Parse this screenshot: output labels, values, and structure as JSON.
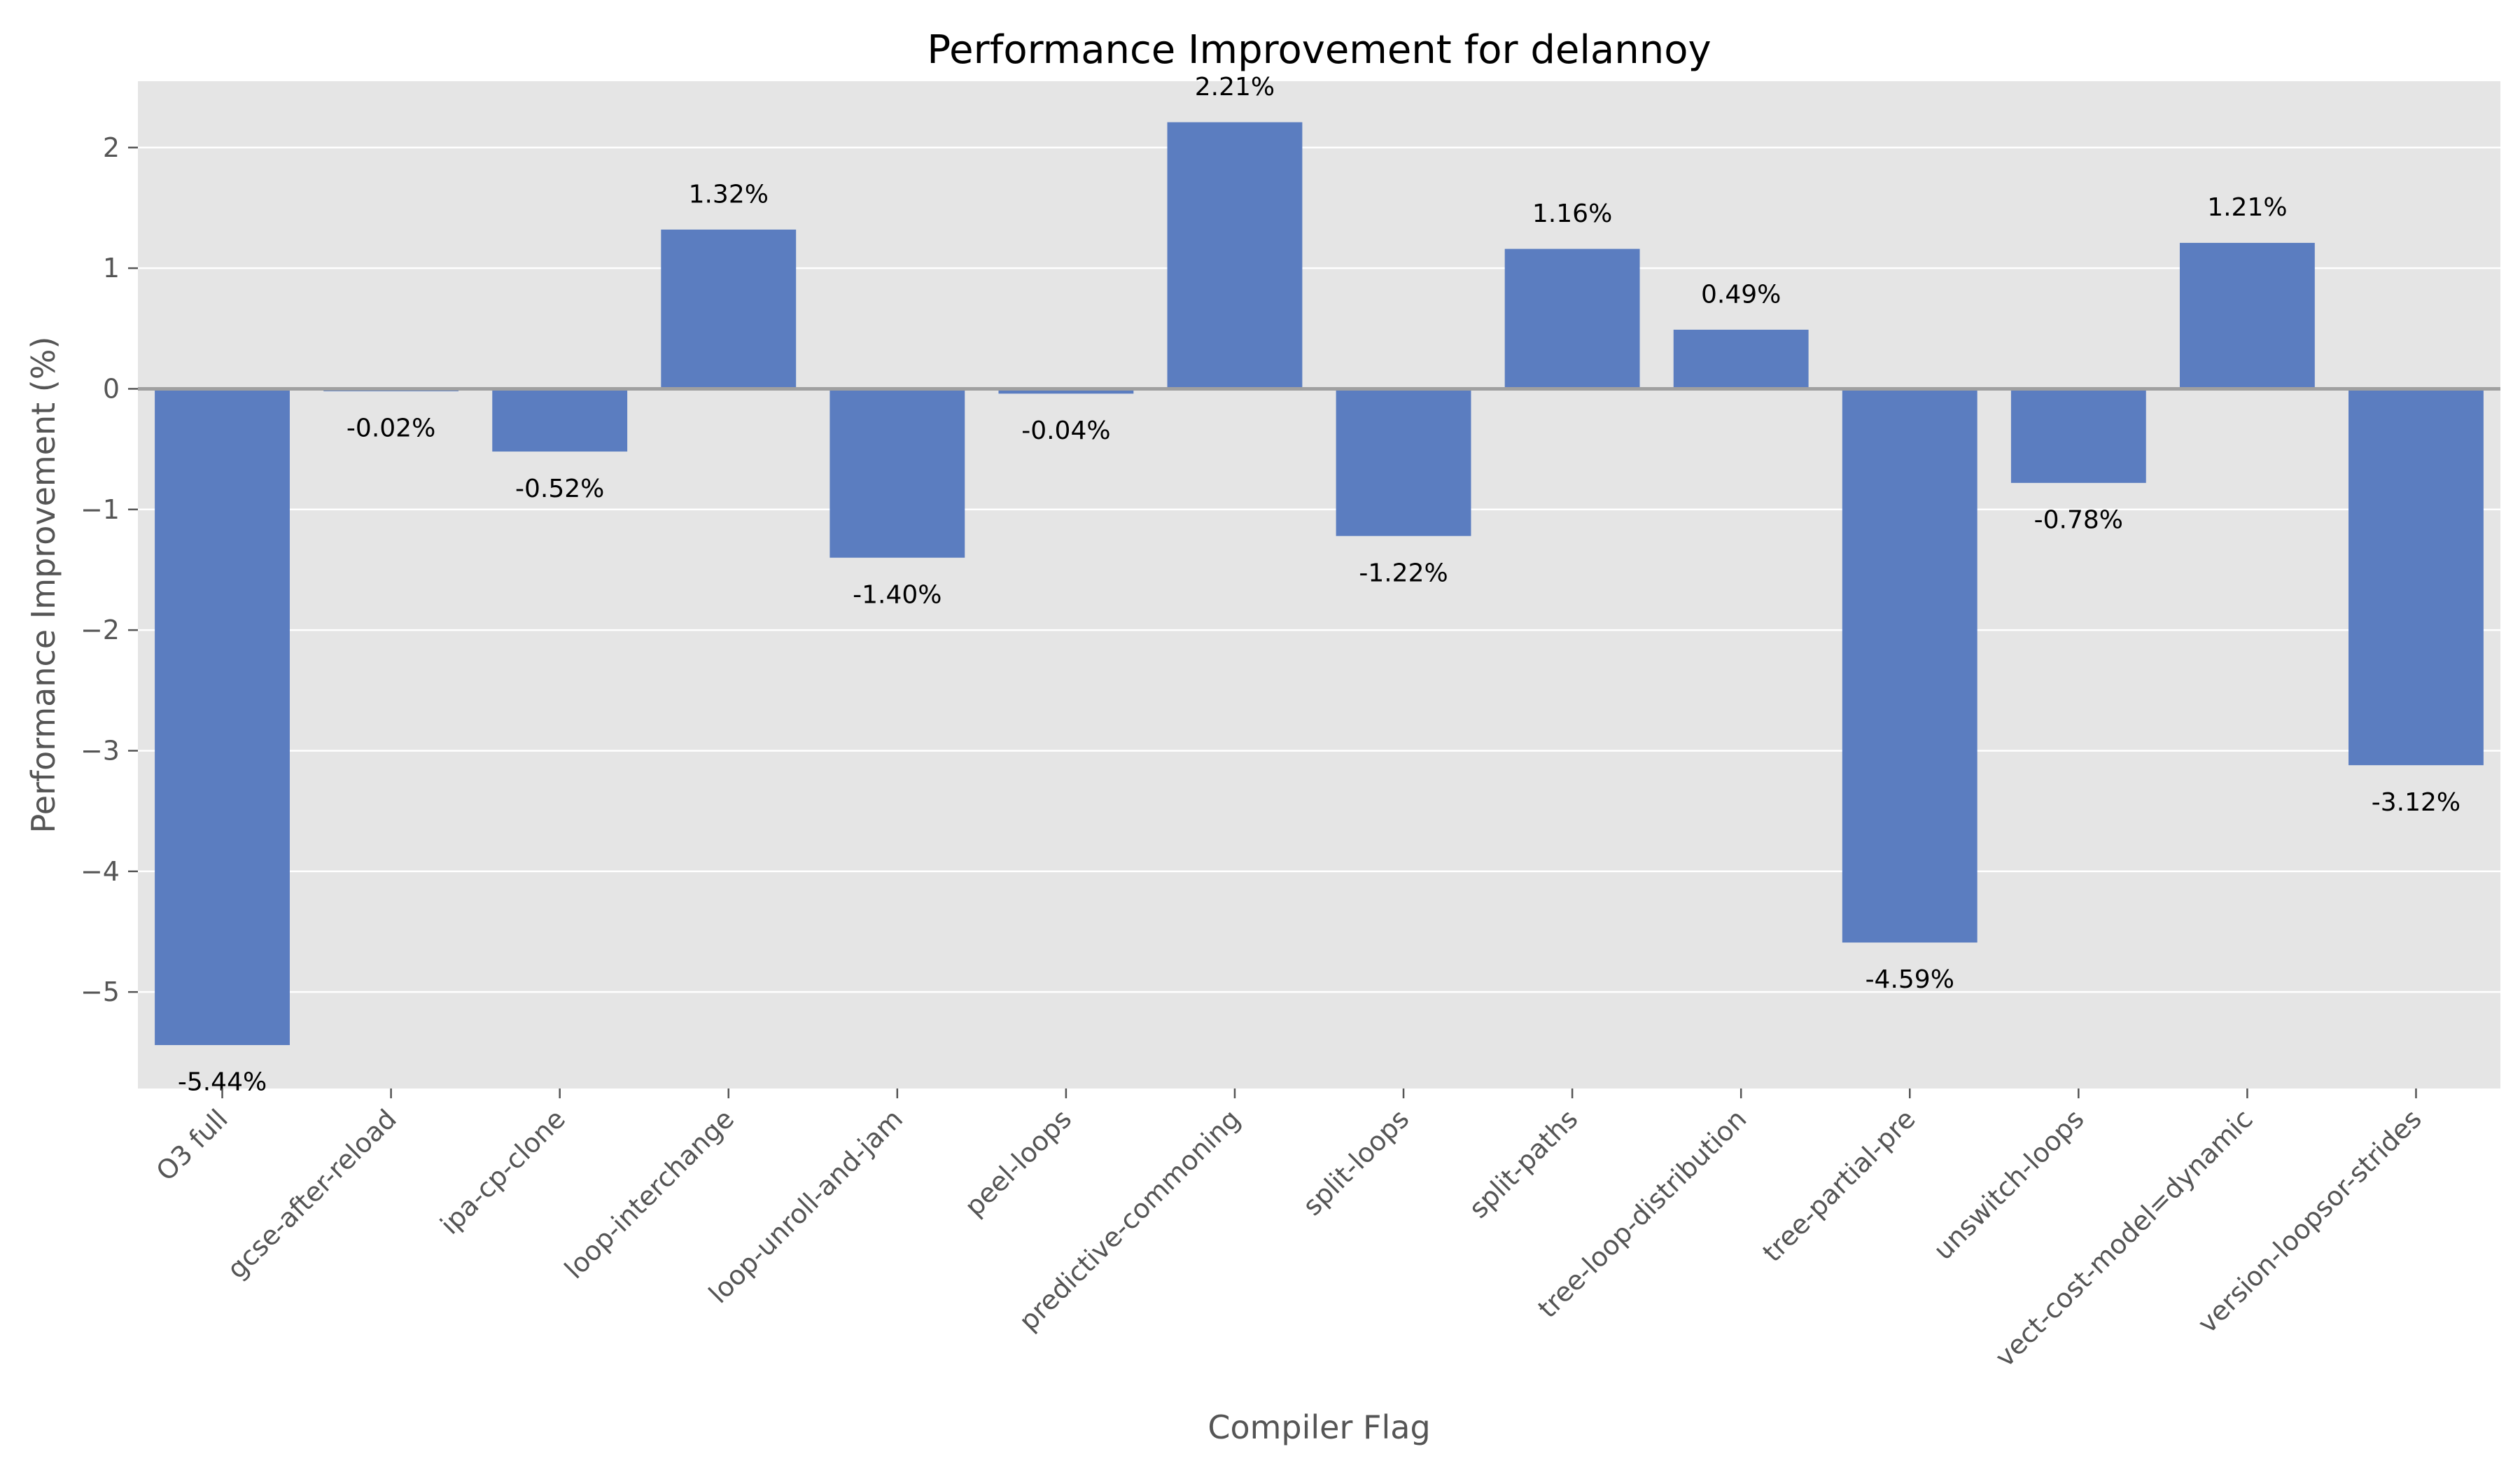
{
  "chart_data": {
    "type": "bar",
    "title": "Performance Improvement for delannoy",
    "xlabel": "Compiler Flag",
    "ylabel": "Performance Improvement (%)",
    "categories": [
      "O3 full",
      "gcse-after-reload",
      "ipa-cp-clone",
      "loop-interchange",
      "loop-unroll-and-jam",
      "peel-loops",
      "predictive-commoning",
      "split-loops",
      "split-paths",
      "tree-loop-distribution",
      "tree-partial-pre",
      "unswitch-loops",
      "vect-cost-model=dynamic",
      "version-loopsor-strides"
    ],
    "values": [
      -5.44,
      -0.02,
      -0.52,
      1.32,
      -1.4,
      -0.04,
      2.21,
      -1.22,
      1.16,
      0.49,
      -4.59,
      -0.78,
      1.21,
      -3.12
    ],
    "value_labels": [
      "-5.44%",
      "-0.02%",
      "-0.52%",
      "1.32%",
      "-1.40%",
      "-0.04%",
      "2.21%",
      "-1.22%",
      "1.16%",
      "0.49%",
      "-4.59%",
      "-0.78%",
      "1.21%",
      "-3.12%"
    ],
    "ylim": [
      -5.8,
      2.55
    ],
    "yticks": [
      -5,
      -4,
      -3,
      -2,
      -1,
      0,
      1,
      2
    ],
    "ytick_labels": [
      "−5",
      "−4",
      "−3",
      "−2",
      "−1",
      "0",
      "1",
      "2"
    ],
    "grid": true,
    "colors": {
      "bar": "#5b7dc0",
      "plot_background": "#e5e5e5",
      "grid": "#ffffff",
      "zero_line": "#a0a0a0"
    }
  }
}
